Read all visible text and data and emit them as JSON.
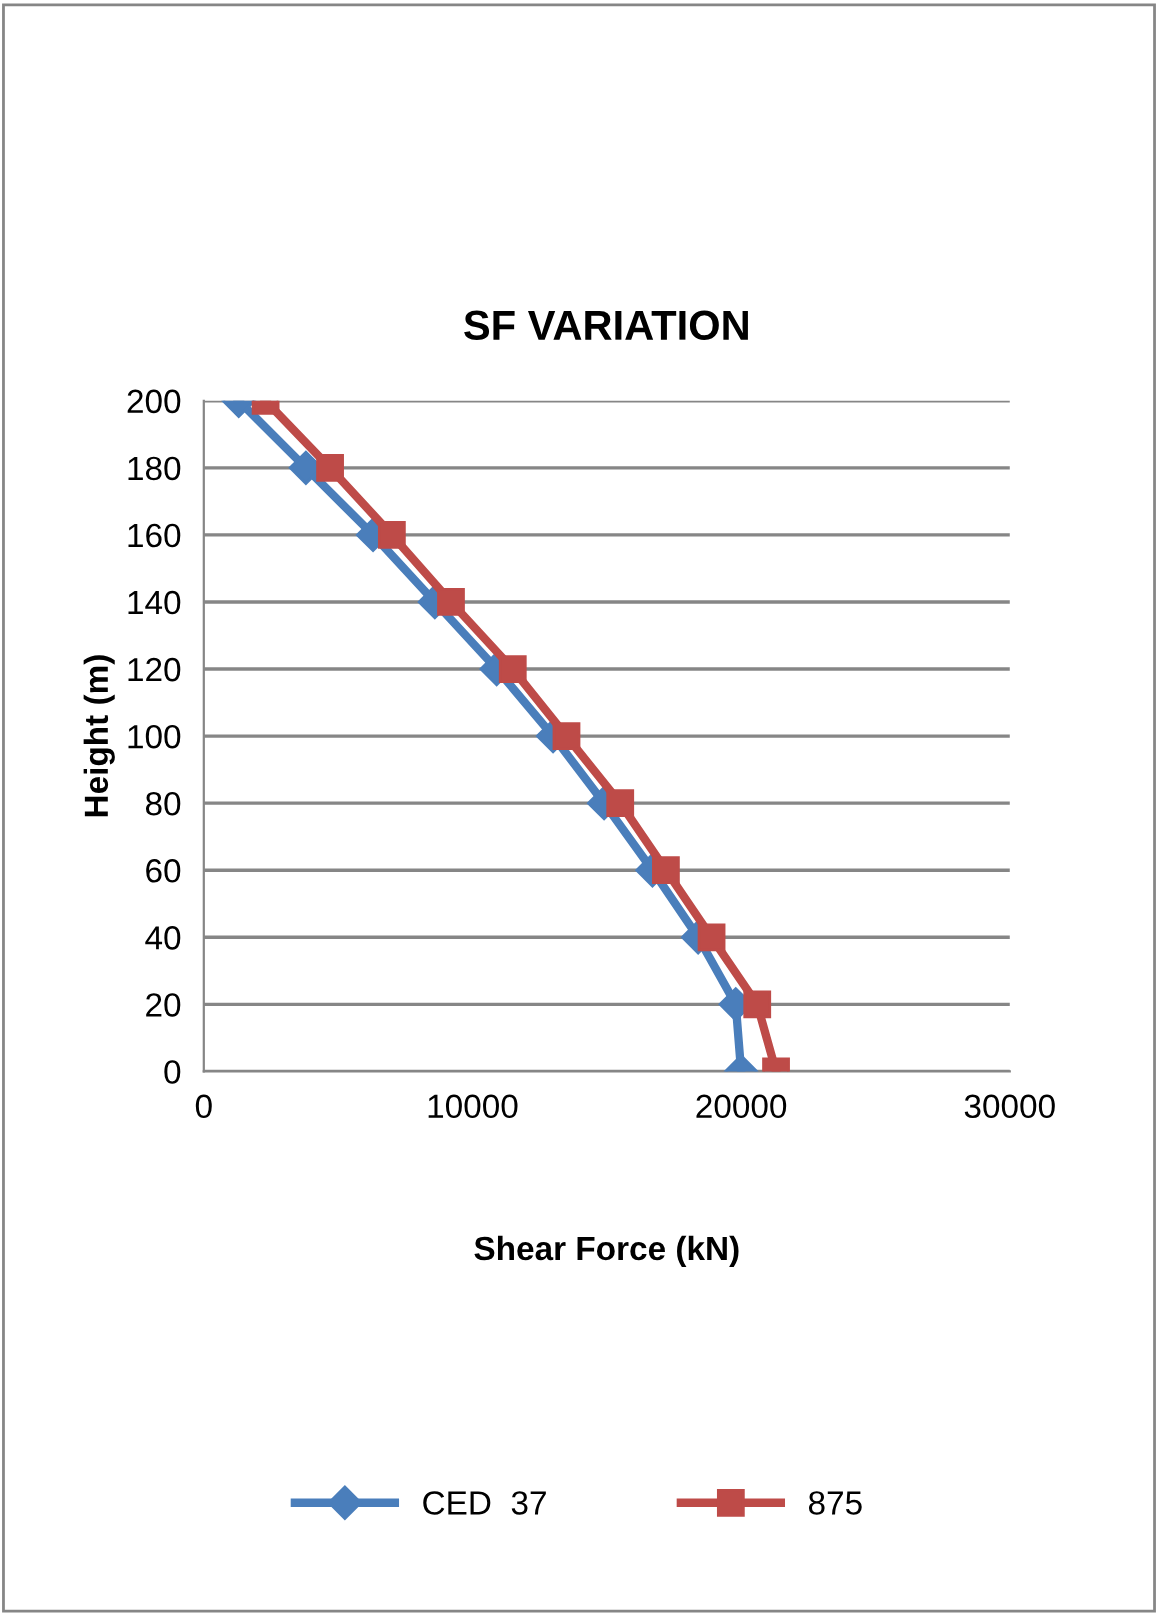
{
  "chart_data": {
    "type": "line",
    "title": "SF VARIATION",
    "xlabel": "Shear Force (kN)",
    "ylabel": "Height (m)",
    "xlim": [
      0,
      30000
    ],
    "xticks": [
      0,
      10000,
      20000,
      30000
    ],
    "ylim": [
      0,
      200
    ],
    "yticks": [
      0,
      20,
      40,
      60,
      80,
      100,
      120,
      140,
      160,
      180,
      200
    ],
    "grid": "y",
    "legend": "bottom",
    "line_style": "solid",
    "series": [
      {
        "name": "CED  37",
        "color": "#4a7ebb",
        "marker": "diamond",
        "x": [
          1300,
          3800,
          6300,
          8600,
          10900,
          13000,
          14900,
          16700,
          18400,
          19800,
          20000
        ],
        "values": [
          200,
          180,
          160,
          140,
          120,
          100,
          80,
          60,
          40,
          20,
          0
        ]
      },
      {
        "name": "875",
        "color": "#be4b48",
        "marker": "square",
        "x": [
          2300,
          4700,
          7000,
          9200,
          11500,
          13500,
          15500,
          17200,
          18900,
          20600,
          21300
        ],
        "values": [
          200,
          180,
          160,
          140,
          120,
          100,
          80,
          60,
          40,
          20,
          0
        ]
      }
    ]
  }
}
